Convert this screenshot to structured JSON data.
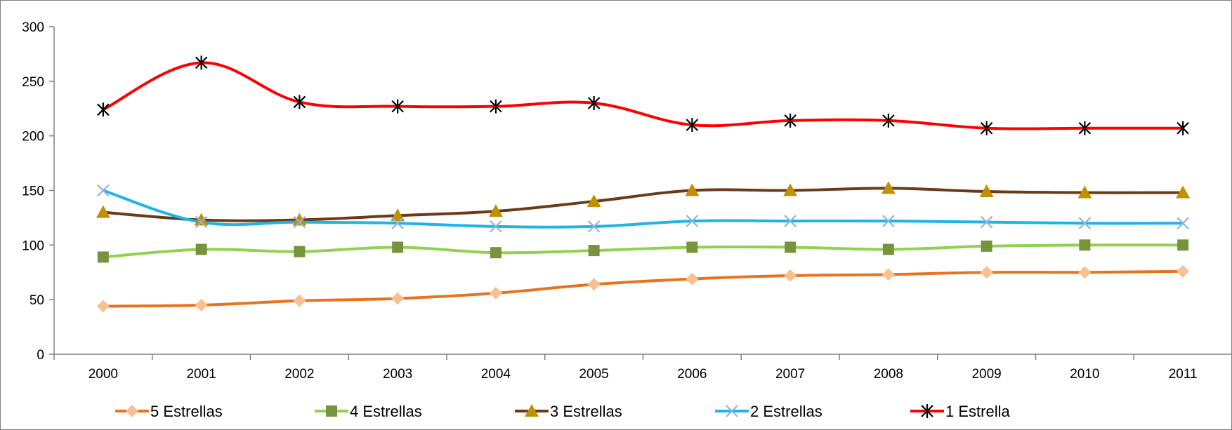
{
  "chart_data": {
    "type": "line",
    "title": "",
    "xlabel": "",
    "ylabel": "",
    "x": [
      "2000",
      "2001",
      "2002",
      "2003",
      "2004",
      "2005",
      "2006",
      "2007",
      "2008",
      "2009",
      "2010",
      "2011"
    ],
    "ylim": [
      0,
      300
    ],
    "yticks": [
      0,
      50,
      100,
      150,
      200,
      250,
      300
    ],
    "grid": false,
    "legend_position": "bottom",
    "series": [
      {
        "name": "5 Estrellas",
        "line_color": "#E8731F",
        "marker_color": "#FAC090",
        "marker": "diamond",
        "values": [
          44,
          45,
          49,
          51,
          56,
          64,
          69,
          72,
          73,
          75,
          75,
          76
        ]
      },
      {
        "name": "4 Estrellas",
        "line_color": "#92D050",
        "marker_color": "#77933C",
        "marker": "square",
        "values": [
          89,
          96,
          94,
          98,
          93,
          95,
          98,
          98,
          96,
          99,
          100,
          100
        ]
      },
      {
        "name": "3 Estrellas",
        "line_color": "#6B3A17",
        "marker_color": "#C09000",
        "marker": "triangle",
        "values": [
          130,
          123,
          123,
          127,
          131,
          140,
          150,
          150,
          152,
          149,
          148,
          148
        ]
      },
      {
        "name": "2 Estrellas",
        "line_color": "#1EB4E8",
        "marker_color": "#95B3D7",
        "marker": "x",
        "values": [
          150,
          121,
          121,
          120,
          117,
          117,
          122,
          122,
          122,
          121,
          120,
          120
        ]
      },
      {
        "name": "1 Estrella",
        "line_color": "#FF0000",
        "marker_color": "#000000",
        "marker": "star",
        "values": [
          224,
          267,
          231,
          227,
          227,
          230,
          210,
          214,
          214,
          207,
          207,
          207
        ]
      }
    ]
  }
}
